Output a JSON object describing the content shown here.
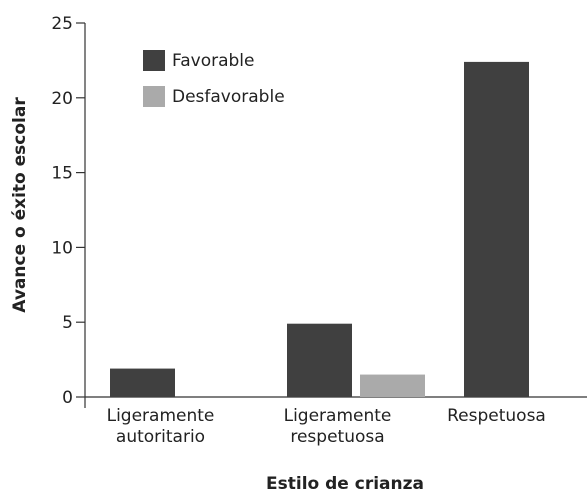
{
  "chart_data": {
    "type": "bar",
    "y_label": "Avance o éxito escolar",
    "x_label": "Estilo de crianza",
    "categories": [
      "Ligeramente autoritario",
      "Ligeramente respetuosa",
      "Respetuosa"
    ],
    "series": [
      {
        "name": "Favorable",
        "color": "#404040",
        "values": [
          1.9,
          4.9,
          22.4
        ]
      },
      {
        "name": "Desfavorable",
        "color": "#aaaaaa",
        "values": [
          0,
          1.5,
          0
        ]
      }
    ],
    "ylim": [
      0,
      25
    ],
    "yticks": [
      0,
      5,
      10,
      15,
      20,
      25
    ],
    "legend": "upper left"
  }
}
